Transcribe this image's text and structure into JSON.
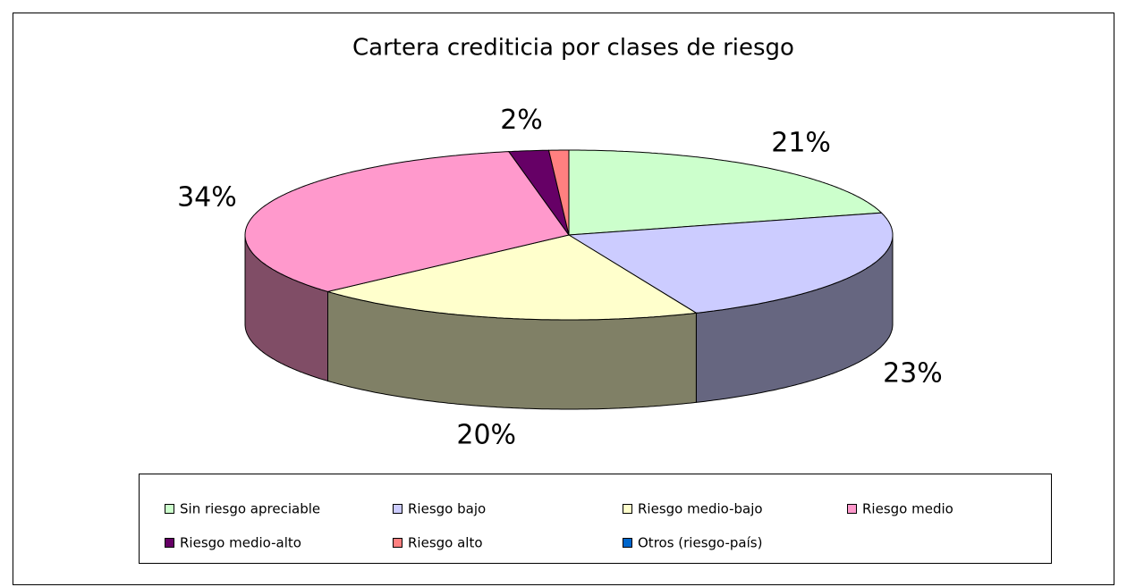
{
  "chart_data": {
    "type": "pie3d",
    "title": "Cartera crediticia por clases de riesgo",
    "categories": [
      "Sin riesgo apreciable",
      "Riesgo bajo",
      "Riesgo medio-bajo",
      "Riesgo medio",
      "Riesgo medio-alto",
      "Riesgo alto",
      "Otros (riesgo-país)"
    ],
    "values": [
      21,
      23,
      20,
      34,
      2,
      1,
      0
    ],
    "value_labels": [
      "21%",
      "23%",
      "20%",
      "34%",
      "2%",
      null,
      null
    ],
    "colors": [
      "#ccffcc",
      "#ccccff",
      "#ffffcc",
      "#ff99cc",
      "#660066",
      "#ff8080",
      "#0066cc"
    ],
    "legend": "bottom"
  }
}
